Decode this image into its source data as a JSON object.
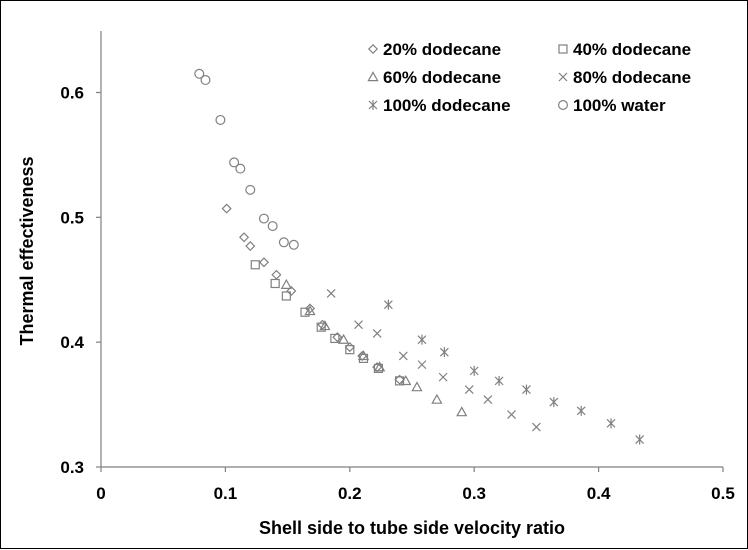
{
  "chart_data": {
    "type": "scatter",
    "title": "",
    "xlabel": "Shell side to tube side velocity ratio",
    "ylabel": "Thermal effectiveness",
    "xlim": [
      0,
      0.5
    ],
    "ylim": [
      0.3,
      0.65
    ],
    "x_ticks": [
      0,
      0.1,
      0.2,
      0.3,
      0.4,
      0.5
    ],
    "x_tick_labels": [
      "0",
      "0.1",
      "0.2",
      "0.3",
      "0.4",
      "0.5"
    ],
    "y_ticks": [
      0.3,
      0.4,
      0.5,
      0.6
    ],
    "y_tick_labels": [
      "0.3",
      "0.4",
      "0.5",
      "0.6"
    ],
    "grid": false,
    "legend_position": "top-right",
    "marker_color": "#808080",
    "series": [
      {
        "name": "20% dodecane",
        "marker": "diamond",
        "points": [
          [
            0.101,
            0.507
          ],
          [
            0.115,
            0.484
          ],
          [
            0.12,
            0.477
          ],
          [
            0.131,
            0.464
          ],
          [
            0.141,
            0.454
          ],
          [
            0.153,
            0.441
          ],
          [
            0.168,
            0.427
          ],
          [
            0.178,
            0.414
          ],
          [
            0.19,
            0.404
          ],
          [
            0.2,
            0.396
          ],
          [
            0.21,
            0.389
          ],
          [
            0.222,
            0.38
          ],
          [
            0.24,
            0.37
          ]
        ]
      },
      {
        "name": "40% dodecane",
        "marker": "square",
        "points": [
          [
            0.124,
            0.462
          ],
          [
            0.14,
            0.447
          ],
          [
            0.149,
            0.437
          ],
          [
            0.164,
            0.424
          ],
          [
            0.177,
            0.412
          ],
          [
            0.188,
            0.403
          ],
          [
            0.2,
            0.394
          ],
          [
            0.211,
            0.387
          ],
          [
            0.223,
            0.379
          ],
          [
            0.24,
            0.369
          ]
        ]
      },
      {
        "name": "60% dodecane",
        "marker": "triangle",
        "points": [
          [
            0.149,
            0.446
          ],
          [
            0.168,
            0.425
          ],
          [
            0.18,
            0.413
          ],
          [
            0.195,
            0.402
          ],
          [
            0.211,
            0.389
          ],
          [
            0.224,
            0.38
          ],
          [
            0.245,
            0.369
          ],
          [
            0.254,
            0.364
          ],
          [
            0.27,
            0.354
          ],
          [
            0.29,
            0.344
          ]
        ]
      },
      {
        "name": "80% dodecane",
        "marker": "x",
        "points": [
          [
            0.185,
            0.439
          ],
          [
            0.207,
            0.414
          ],
          [
            0.222,
            0.407
          ],
          [
            0.243,
            0.389
          ],
          [
            0.258,
            0.382
          ],
          [
            0.275,
            0.372
          ],
          [
            0.296,
            0.362
          ],
          [
            0.311,
            0.354
          ],
          [
            0.33,
            0.342
          ],
          [
            0.35,
            0.332
          ]
        ]
      },
      {
        "name": "100% dodecane",
        "marker": "asterisk",
        "points": [
          [
            0.231,
            0.43
          ],
          [
            0.258,
            0.402
          ],
          [
            0.276,
            0.392
          ],
          [
            0.3,
            0.377
          ],
          [
            0.32,
            0.369
          ],
          [
            0.342,
            0.362
          ],
          [
            0.364,
            0.352
          ],
          [
            0.386,
            0.345
          ],
          [
            0.41,
            0.335
          ],
          [
            0.433,
            0.322
          ]
        ]
      },
      {
        "name": "100% water",
        "marker": "circle",
        "points": [
          [
            0.079,
            0.615
          ],
          [
            0.084,
            0.61
          ],
          [
            0.096,
            0.578
          ],
          [
            0.107,
            0.544
          ],
          [
            0.112,
            0.539
          ],
          [
            0.12,
            0.522
          ],
          [
            0.131,
            0.499
          ],
          [
            0.138,
            0.493
          ],
          [
            0.147,
            0.48
          ],
          [
            0.155,
            0.478
          ]
        ]
      }
    ]
  }
}
